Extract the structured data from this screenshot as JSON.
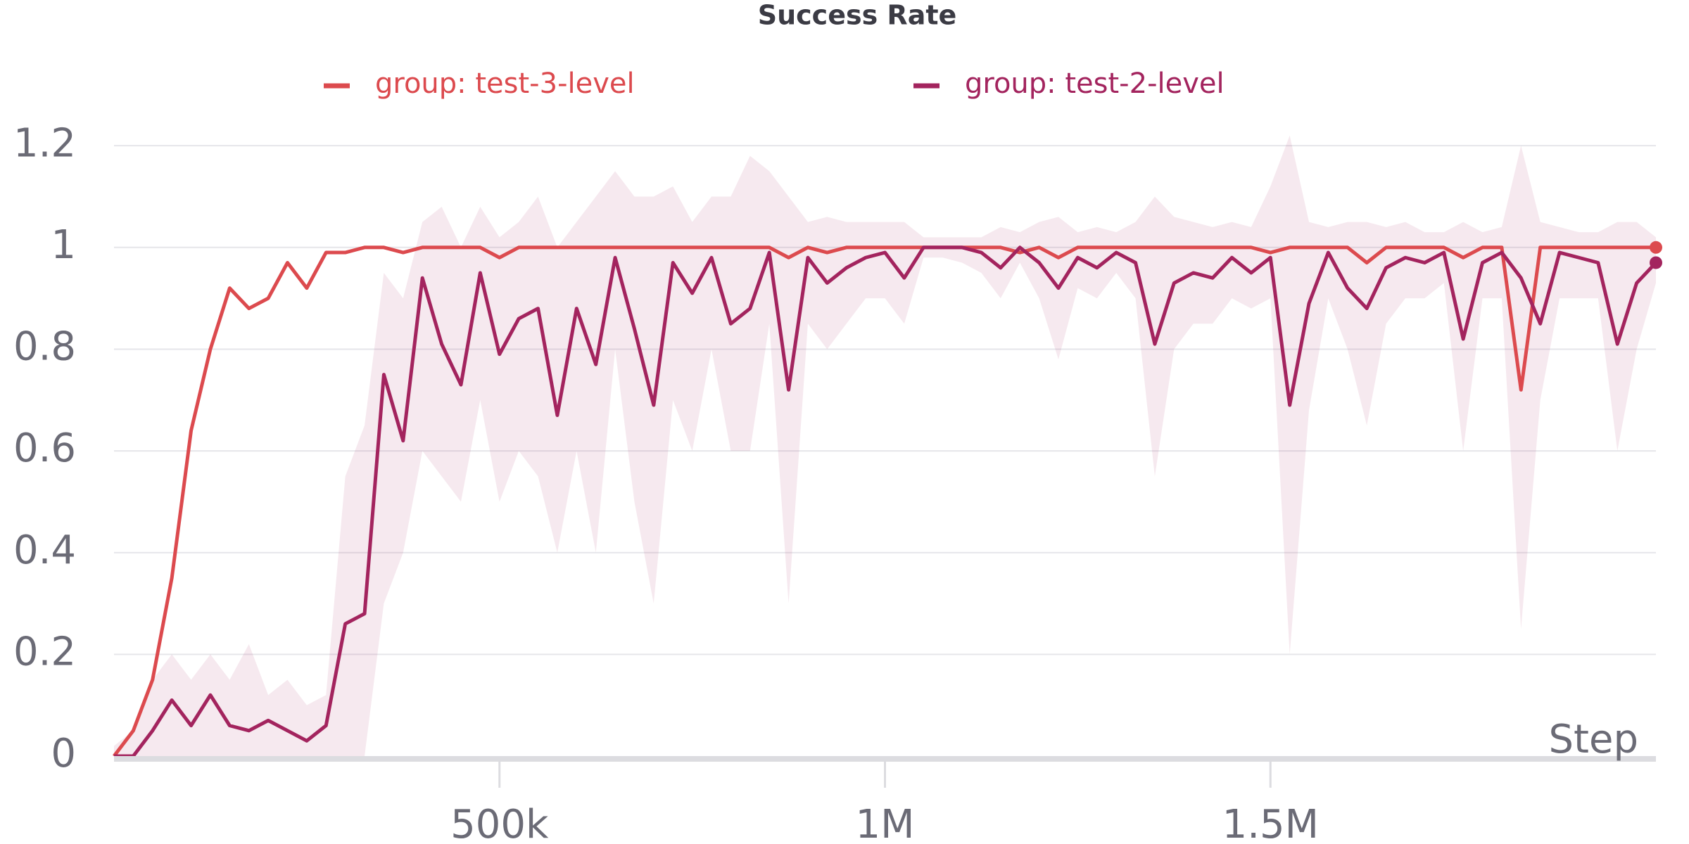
{
  "chart_data": {
    "type": "line",
    "title": "Success Rate",
    "x_label": "Step",
    "x": [
      0,
      25000,
      50000,
      75000,
      100000,
      125000,
      150000,
      175000,
      200000,
      225000,
      250000,
      275000,
      300000,
      325000,
      350000,
      375000,
      400000,
      425000,
      450000,
      475000,
      500000,
      525000,
      550000,
      575000,
      600000,
      625000,
      650000,
      675000,
      700000,
      725000,
      750000,
      775000,
      800000,
      825000,
      850000,
      875000,
      900000,
      925000,
      950000,
      975000,
      1000000,
      1025000,
      1050000,
      1075000,
      1100000,
      1125000,
      1150000,
      1175000,
      1200000,
      1225000,
      1250000,
      1275000,
      1300000,
      1325000,
      1350000,
      1375000,
      1400000,
      1425000,
      1450000,
      1475000,
      1500000,
      1525000,
      1550000,
      1575000,
      1600000,
      1625000,
      1650000,
      1675000,
      1700000,
      1725000,
      1750000,
      1775000,
      1800000,
      1825000,
      1850000,
      1875000,
      1900000,
      1925000,
      1950000,
      1975000,
      2000000
    ],
    "series": [
      {
        "name": "group: test-3-level",
        "color": "#dc4a4e",
        "values": [
          0,
          0.05,
          0.15,
          0.35,
          0.64,
          0.8,
          0.92,
          0.88,
          0.9,
          0.97,
          0.92,
          0.99,
          0.99,
          1,
          1,
          0.99,
          1,
          1,
          1,
          1,
          0.98,
          1,
          1,
          1,
          1,
          1,
          1,
          1,
          1,
          1,
          1,
          1,
          1,
          1,
          1,
          0.98,
          1,
          0.99,
          1,
          1,
          1,
          1,
          1,
          1,
          1,
          1,
          1,
          0.99,
          1,
          0.98,
          1,
          1,
          1,
          1,
          1,
          1,
          1,
          1,
          1,
          1,
          0.99,
          1,
          1,
          1,
          1,
          0.97,
          1,
          1,
          1,
          1,
          0.98,
          1,
          1,
          0.72,
          1,
          1,
          1,
          1,
          1,
          1,
          1
        ]
      },
      {
        "name": "group: test-2-level",
        "color": "#a3245e",
        "values": [
          0,
          0,
          0.05,
          0.11,
          0.06,
          0.12,
          0.06,
          0.05,
          0.07,
          0.05,
          0.03,
          0.06,
          0.26,
          0.28,
          0.75,
          0.62,
          0.94,
          0.81,
          0.73,
          0.95,
          0.79,
          0.86,
          0.88,
          0.67,
          0.88,
          0.77,
          0.98,
          0.84,
          0.69,
          0.97,
          0.91,
          0.98,
          0.85,
          0.88,
          0.99,
          0.72,
          0.98,
          0.93,
          0.96,
          0.98,
          0.99,
          0.94,
          1,
          1,
          1,
          0.99,
          0.96,
          1,
          0.97,
          0.92,
          0.98,
          0.96,
          0.99,
          0.97,
          0.81,
          0.93,
          0.95,
          0.94,
          0.98,
          0.95,
          0.98,
          0.69,
          0.89,
          0.99,
          0.92,
          0.88,
          0.96,
          0.98,
          0.97,
          0.99,
          0.82,
          0.97,
          0.99,
          0.94,
          0.85,
          0.99,
          0.98,
          0.97,
          0.81,
          0.93,
          0.97
        ],
        "lower": [
          0,
          0,
          0,
          0,
          0,
          0,
          0,
          0,
          0,
          0,
          0,
          0,
          0,
          0,
          0.3,
          0.4,
          0.6,
          0.55,
          0.5,
          0.7,
          0.5,
          0.6,
          0.55,
          0.4,
          0.6,
          0.4,
          0.8,
          0.5,
          0.3,
          0.7,
          0.6,
          0.8,
          0.6,
          0.6,
          0.85,
          0.3,
          0.85,
          0.8,
          0.85,
          0.9,
          0.9,
          0.85,
          0.98,
          0.98,
          0.97,
          0.95,
          0.9,
          0.97,
          0.9,
          0.78,
          0.92,
          0.9,
          0.95,
          0.9,
          0.55,
          0.8,
          0.85,
          0.85,
          0.9,
          0.88,
          0.9,
          0.2,
          0.68,
          0.9,
          0.8,
          0.65,
          0.85,
          0.9,
          0.9,
          0.93,
          0.6,
          0.9,
          0.9,
          0.25,
          0.7,
          0.9,
          0.9,
          0.9,
          0.6,
          0.8,
          0.93
        ],
        "upper": [
          0.02,
          0.05,
          0.15,
          0.2,
          0.15,
          0.2,
          0.15,
          0.22,
          0.12,
          0.15,
          0.1,
          0.12,
          0.55,
          0.65,
          0.95,
          0.9,
          1.05,
          1.08,
          1,
          1.08,
          1.02,
          1.05,
          1.1,
          1,
          1.05,
          1.1,
          1.15,
          1.1,
          1.1,
          1.12,
          1.05,
          1.1,
          1.1,
          1.18,
          1.15,
          1.1,
          1.05,
          1.06,
          1.05,
          1.05,
          1.05,
          1.05,
          1.02,
          1.02,
          1.02,
          1.02,
          1.04,
          1.03,
          1.05,
          1.06,
          1.03,
          1.04,
          1.03,
          1.05,
          1.1,
          1.06,
          1.05,
          1.04,
          1.05,
          1.04,
          1.12,
          1.22,
          1.05,
          1.04,
          1.05,
          1.05,
          1.04,
          1.05,
          1.03,
          1.03,
          1.05,
          1.03,
          1.04,
          1.2,
          1.05,
          1.04,
          1.03,
          1.03,
          1.05,
          1.05,
          1.02
        ]
      }
    ],
    "xlim": [
      0,
      2000000
    ],
    "xticks": [
      {
        "value": 500000,
        "label": "500k"
      },
      {
        "value": 1000000,
        "label": "1M"
      },
      {
        "value": 1500000,
        "label": "1.5M"
      }
    ],
    "ylim": [
      0,
      1.25
    ],
    "yticks": [
      0,
      0.2,
      0.4,
      0.6,
      0.8,
      1,
      1.2
    ],
    "grid": true
  }
}
